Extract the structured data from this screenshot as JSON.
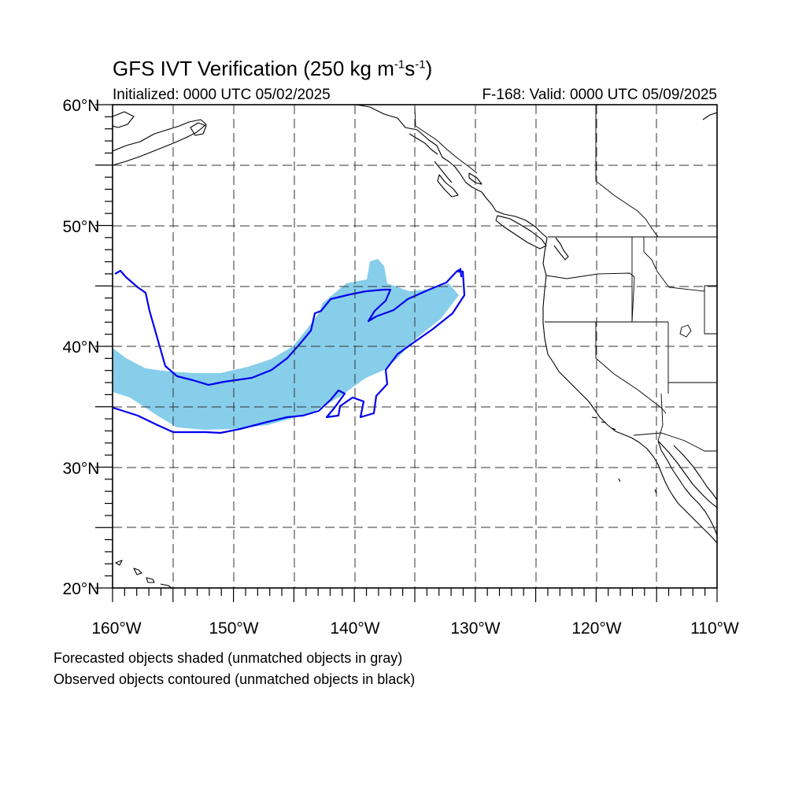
{
  "title": {
    "main": "GFS IVT Verification (250 kg m",
    "exp1": "-1",
    "mid": "s",
    "exp2": "-1",
    "end": ")"
  },
  "subtitle": {
    "initialized": "Initialized: 0000 UTC 05/02/2025",
    "valid": "F-168: Valid: 0000 UTC 05/09/2025"
  },
  "notes": {
    "forecast": "Forecasted objects shaded (unmatched objects in gray)",
    "observed": "Observed objects contoured (unmatched objects in black)"
  },
  "map": {
    "lon_range": [
      -160,
      -110
    ],
    "lat_range": [
      20,
      60
    ],
    "lon_labels": [
      "160°W",
      "150°W",
      "140°W",
      "130°W",
      "120°W",
      "110°W"
    ],
    "lat_labels": [
      "60°N",
      "50°N",
      "40°N",
      "30°N",
      "20°N"
    ],
    "grid_interval_deg": 5,
    "forecast_fill_color": "#87CEEB",
    "observed_contour_color": "#0000EE"
  }
}
